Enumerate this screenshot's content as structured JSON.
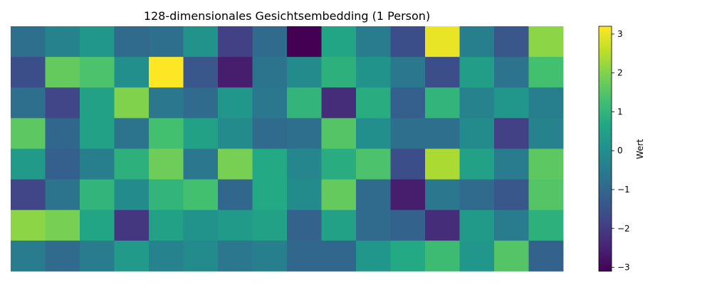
{
  "chart_data": {
    "type": "heatmap",
    "title": "128-dimensionales Gesichtsembedding (1 Person)",
    "rows": 8,
    "cols": 16,
    "values": [
      [
        -0.8,
        -0.3,
        0.2,
        -0.9,
        -0.8,
        0.1,
        -1.9,
        -0.9,
        -3.1,
        0.6,
        -0.5,
        -1.6,
        3.0,
        -0.4,
        -1.4,
        2.1
      ],
      [
        -1.6,
        1.7,
        1.4,
        0.0,
        3.2,
        -1.4,
        -2.6,
        -0.7,
        -0.1,
        0.9,
        0.1,
        -0.6,
        -1.6,
        0.4,
        -0.7,
        1.3
      ],
      [
        -0.8,
        -1.8,
        0.5,
        2.0,
        -0.6,
        -0.9,
        0.2,
        -0.6,
        1.0,
        -2.3,
        0.8,
        -1.2,
        1.0,
        -0.3,
        0.2,
        -0.4
      ],
      [
        1.6,
        -1.0,
        0.5,
        -0.7,
        1.3,
        0.5,
        -0.1,
        -0.9,
        -0.8,
        1.5,
        0.0,
        -0.8,
        -0.8,
        -0.1,
        -1.9,
        -0.3
      ],
      [
        0.3,
        -1.2,
        -0.4,
        0.9,
        1.8,
        -0.6,
        1.9,
        0.7,
        -0.2,
        0.8,
        1.4,
        -1.6,
        2.4,
        0.5,
        -0.5,
        1.6
      ],
      [
        -1.8,
        -0.7,
        1.0,
        -0.1,
        1.0,
        1.3,
        -1.0,
        0.7,
        -0.1,
        1.7,
        -0.9,
        -2.6,
        -0.6,
        -0.9,
        -1.4,
        1.5
      ],
      [
        2.1,
        1.9,
        0.6,
        -2.1,
        0.5,
        0.1,
        0.3,
        0.5,
        -1.1,
        0.5,
        -0.9,
        -1.1,
        -2.3,
        0.3,
        -0.5,
        0.9
      ],
      [
        -0.5,
        -0.9,
        -0.5,
        0.3,
        -0.3,
        -0.1,
        -0.6,
        -0.4,
        -1.0,
        -1.0,
        0.2,
        0.7,
        1.2,
        0.2,
        1.5,
        -1.1
      ]
    ],
    "colormap": "viridis",
    "vmin": -3.1,
    "vmax": 3.2,
    "colorbar": {
      "label": "Wert",
      "ticks": [
        3,
        2,
        1,
        0,
        -1,
        -2,
        -3
      ],
      "tick_labels": [
        "3",
        "2",
        "1",
        "0",
        "−1",
        "−2",
        "−3"
      ]
    },
    "xlabel": "",
    "ylabel": "",
    "grid": false
  }
}
